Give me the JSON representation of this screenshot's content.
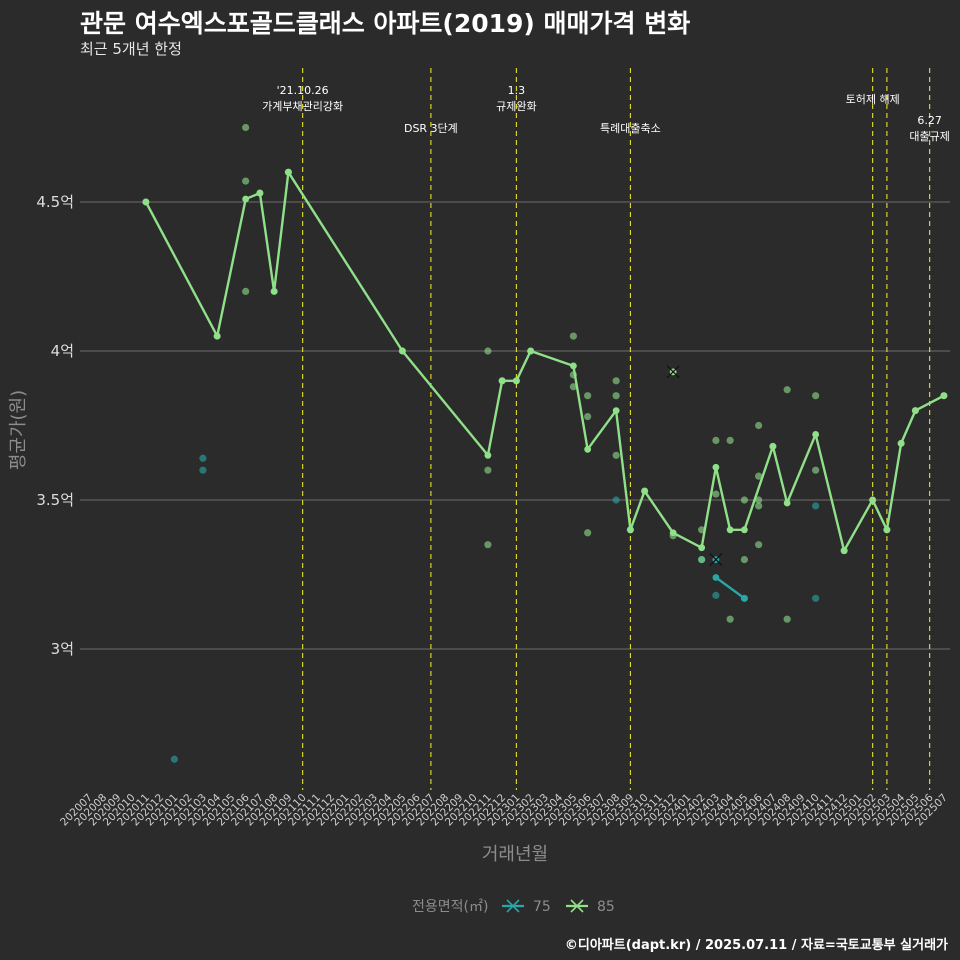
{
  "header": {
    "title": "관문 여수엑스포골드클래스 아파트(2019) 매매가격 변화",
    "subtitle": "최근 5개년 한정"
  },
  "footer": {
    "caption": "©디아파트(dapt.kr) / 2025.07.11 / 자료=국토교통부 실거래가"
  },
  "colors": {
    "background": "#2b2b2b",
    "gridline": "#6e6e6e",
    "series_75": "#2aa6a8",
    "series_85": "#90e08a",
    "event_line": "#e6e02a"
  },
  "chart_data": {
    "type": "line",
    "title": "관문 여수엑스포골드클래스 아파트(2019) 매매가격 변화",
    "subtitle": "최근 5개년 한정",
    "xlabel": "거래년월",
    "ylabel": "평균가(원)",
    "categories": [
      "202007",
      "202008",
      "202009",
      "202010",
      "202011",
      "202012",
      "202101",
      "202102",
      "202103",
      "202104",
      "202105",
      "202106",
      "202107",
      "202108",
      "202109",
      "202110",
      "202111",
      "202112",
      "202201",
      "202202",
      "202203",
      "202204",
      "202205",
      "202206",
      "202207",
      "202208",
      "202209",
      "202210",
      "202211",
      "202212",
      "202301",
      "202302",
      "202303",
      "202304",
      "202305",
      "202306",
      "202307",
      "202308",
      "202309",
      "202310",
      "202311",
      "202312",
      "202401",
      "202402",
      "202403",
      "202404",
      "202405",
      "202406",
      "202407",
      "202408",
      "202409",
      "202410",
      "202411",
      "202412",
      "202501",
      "202502",
      "202503",
      "202504",
      "202505",
      "202506",
      "202507"
    ],
    "y_ticks": [
      3.0,
      3.5,
      4.0,
      4.5
    ],
    "y_tick_labels": [
      "3억",
      "3.5억",
      "4억",
      "4.5억"
    ],
    "ylim": [
      2.5,
      4.99
    ],
    "grid": true,
    "legend": {
      "title": "전용면적(㎡)",
      "position": "bottom",
      "items": [
        {
          "label": "75",
          "color": "#2aa6a8"
        },
        {
          "label": "85",
          "color": "#90e08a"
        }
      ]
    },
    "series": [
      {
        "name": "75",
        "color": "#2aa6a8",
        "line": [
          [
            "202403",
            3.24
          ],
          [
            "202405",
            3.17
          ]
        ],
        "points": [
          [
            "202101",
            2.63
          ],
          [
            "202103",
            3.64
          ],
          [
            "202103",
            3.6
          ],
          [
            "202308",
            3.5
          ],
          [
            "202402",
            3.3
          ],
          [
            "202403",
            3.18
          ],
          [
            "202405",
            3.17
          ],
          [
            "202410",
            3.48
          ],
          [
            "202410",
            3.17
          ]
        ],
        "highlight": [
          [
            "202403",
            3.3
          ]
        ]
      },
      {
        "name": "85",
        "color": "#90e08a",
        "line": [
          [
            "202011",
            4.5
          ],
          [
            "202104",
            4.05
          ],
          [
            "202106",
            4.51
          ],
          [
            "202107",
            4.53
          ],
          [
            "202108",
            4.2
          ],
          [
            "202109",
            4.6
          ],
          [
            "202205",
            4.0
          ],
          [
            "202211",
            3.65
          ],
          [
            "202212",
            3.9
          ],
          [
            "202301",
            3.9
          ],
          [
            "202302",
            4.0
          ],
          [
            "202305",
            3.95
          ],
          [
            "202306",
            3.67
          ],
          [
            "202308",
            3.8
          ],
          [
            "202309",
            3.4
          ],
          [
            "202310",
            3.53
          ],
          [
            "202312",
            3.39
          ],
          [
            "202402",
            3.34
          ],
          [
            "202403",
            3.61
          ],
          [
            "202404",
            3.4
          ],
          [
            "202405",
            3.4
          ],
          [
            "202407",
            3.68
          ],
          [
            "202408",
            3.49
          ],
          [
            "202410",
            3.72
          ],
          [
            "202412",
            3.33
          ],
          [
            "202502",
            3.5
          ],
          [
            "202503",
            3.4
          ],
          [
            "202504",
            3.69
          ],
          [
            "202505",
            3.8
          ],
          [
            "202507",
            3.85
          ]
        ],
        "points": [
          [
            "202011",
            4.5
          ],
          [
            "202104",
            4.05
          ],
          [
            "202106",
            4.75
          ],
          [
            "202106",
            4.57
          ],
          [
            "202106",
            4.2
          ],
          [
            "202107",
            4.53
          ],
          [
            "202108",
            4.2
          ],
          [
            "202109",
            4.6
          ],
          [
            "202205",
            4.0
          ],
          [
            "202211",
            4.0
          ],
          [
            "202211",
            3.6
          ],
          [
            "202211",
            3.35
          ],
          [
            "202212",
            3.9
          ],
          [
            "202301",
            3.9
          ],
          [
            "202302",
            4.0
          ],
          [
            "202305",
            4.05
          ],
          [
            "202305",
            3.92
          ],
          [
            "202305",
            3.88
          ],
          [
            "202306",
            3.85
          ],
          [
            "202306",
            3.78
          ],
          [
            "202306",
            3.39
          ],
          [
            "202308",
            3.9
          ],
          [
            "202308",
            3.85
          ],
          [
            "202308",
            3.65
          ],
          [
            "202309",
            3.4
          ],
          [
            "202310",
            3.53
          ],
          [
            "202312",
            3.38
          ],
          [
            "202402",
            3.4
          ],
          [
            "202402",
            3.3
          ],
          [
            "202403",
            3.7
          ],
          [
            "202403",
            3.52
          ],
          [
            "202404",
            3.7
          ],
          [
            "202404",
            3.1
          ],
          [
            "202405",
            3.5
          ],
          [
            "202405",
            3.3
          ],
          [
            "202406",
            3.75
          ],
          [
            "202406",
            3.58
          ],
          [
            "202406",
            3.5
          ],
          [
            "202406",
            3.48
          ],
          [
            "202406",
            3.35
          ],
          [
            "202407",
            3.68
          ],
          [
            "202408",
            3.87
          ],
          [
            "202408",
            3.1
          ],
          [
            "202410",
            3.85
          ],
          [
            "202410",
            3.6
          ],
          [
            "202412",
            3.33
          ],
          [
            "202502",
            3.5
          ],
          [
            "202503",
            3.4
          ],
          [
            "202504",
            3.69
          ],
          [
            "202505",
            3.8
          ],
          [
            "202507",
            3.85
          ]
        ],
        "highlight": [
          [
            "202312",
            3.93
          ]
        ]
      }
    ],
    "events": [
      {
        "x": "202110",
        "lines": [
          "'21.10.26",
          "가계부채관리강화"
        ]
      },
      {
        "x": "202207",
        "lines": [
          "DSR 3단계"
        ]
      },
      {
        "x": "202301",
        "lines": [
          "1.3",
          "규제완화"
        ]
      },
      {
        "x": "202309",
        "lines": [
          "특례대출축소"
        ]
      },
      {
        "x": "202502",
        "lines": [
          "토허제 해제"
        ]
      },
      {
        "x": "202503",
        "lines": []
      },
      {
        "x": "202506",
        "lines": [
          "6.27",
          "대출규제"
        ]
      }
    ]
  }
}
